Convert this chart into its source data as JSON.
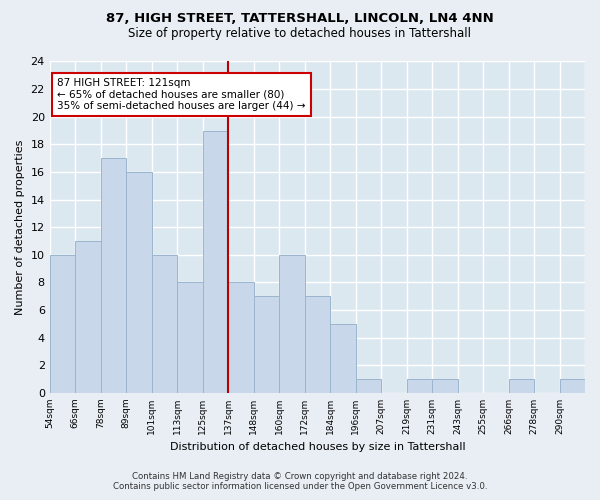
{
  "title": "87, HIGH STREET, TATTERSHALL, LINCOLN, LN4 4NN",
  "subtitle": "Size of property relative to detached houses in Tattershall",
  "xlabel": "Distribution of detached houses by size in Tattershall",
  "ylabel": "Number of detached properties",
  "bin_labels": [
    "54sqm",
    "66sqm",
    "78sqm",
    "89sqm",
    "101sqm",
    "113sqm",
    "125sqm",
    "137sqm",
    "148sqm",
    "160sqm",
    "172sqm",
    "184sqm",
    "196sqm",
    "207sqm",
    "219sqm",
    "231sqm",
    "243sqm",
    "255sqm",
    "266sqm",
    "278sqm",
    "290sqm"
  ],
  "counts": [
    10,
    11,
    17,
    16,
    10,
    8,
    19,
    8,
    7,
    10,
    7,
    5,
    1,
    0,
    1,
    1,
    0,
    0,
    1,
    0,
    1
  ],
  "bar_color": "#c8d8ea",
  "bar_edge_color": "#9ab5cc",
  "subject_bar_index": 6,
  "subject_line_color": "#bb0000",
  "annotation_title": "87 HIGH STREET: 121sqm",
  "annotation_line1": "← 65% of detached houses are smaller (80)",
  "annotation_line2": "35% of semi-detached houses are larger (44) →",
  "annotation_box_color": "#ffffff",
  "annotation_box_edge_color": "#cc0000",
  "ylim": [
    0,
    24
  ],
  "yticks": [
    0,
    2,
    4,
    6,
    8,
    10,
    12,
    14,
    16,
    18,
    20,
    22,
    24
  ],
  "footer_line1": "Contains HM Land Registry data © Crown copyright and database right 2024.",
  "footer_line2": "Contains public sector information licensed under the Open Government Licence v3.0.",
  "background_color": "#e8eef4",
  "plot_background_color": "#dce8f0",
  "grid_color": "#ffffff",
  "title_fontsize": 9.5,
  "subtitle_fontsize": 8.5
}
